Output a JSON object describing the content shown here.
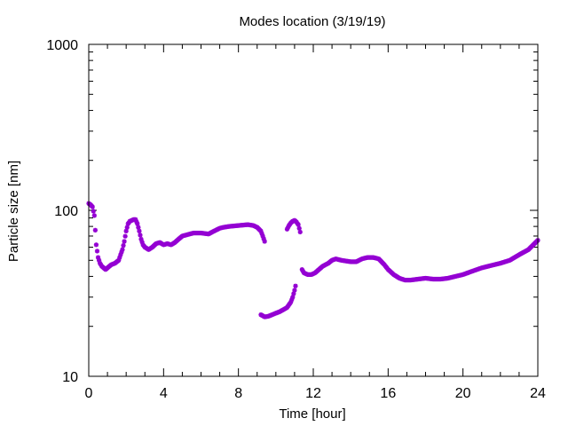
{
  "chart_data": {
    "type": "scatter",
    "title": "Modes location (3/19/19)",
    "xlabel": "Time [hour]",
    "ylabel": "Particle size [nm]",
    "xlim": [
      0,
      24
    ],
    "ylim": [
      10,
      1000
    ],
    "yscale": "log",
    "grid": false,
    "legend": "none",
    "x_ticks": [
      0,
      4,
      8,
      12,
      16,
      20,
      24
    ],
    "x_tick_labels": [
      "0",
      "4",
      "8",
      "12",
      "16",
      "20",
      "24"
    ],
    "y_ticks": [
      10,
      100,
      1000
    ],
    "y_tick_labels": [
      "10",
      "100",
      "1000"
    ],
    "marker_color": "#9400d3",
    "series": [
      {
        "name": "",
        "anchors": [
          [
            0.0,
            110
          ],
          [
            0.1,
            108
          ],
          [
            0.2,
            105
          ],
          [
            0.3,
            93
          ],
          [
            0.4,
            62
          ],
          [
            0.5,
            52
          ],
          [
            0.6,
            48
          ],
          [
            0.7,
            46
          ],
          [
            0.8,
            45
          ],
          [
            0.9,
            44
          ],
          [
            1.0,
            45
          ],
          [
            1.2,
            47
          ],
          [
            1.4,
            48
          ],
          [
            1.6,
            50
          ],
          [
            1.7,
            54
          ],
          [
            1.8,
            58
          ],
          [
            1.9,
            65
          ],
          [
            2.0,
            75
          ],
          [
            2.1,
            83
          ],
          [
            2.2,
            86
          ],
          [
            2.4,
            88
          ],
          [
            2.5,
            88
          ],
          [
            2.6,
            83
          ],
          [
            2.7,
            75
          ],
          [
            2.8,
            67
          ],
          [
            2.9,
            62
          ],
          [
            3.0,
            60
          ],
          [
            3.2,
            58
          ],
          [
            3.4,
            60
          ],
          [
            3.6,
            63
          ],
          [
            3.8,
            64
          ],
          [
            4.0,
            62
          ],
          [
            4.2,
            63
          ],
          [
            4.4,
            62
          ],
          [
            4.6,
            64
          ],
          [
            4.8,
            67
          ],
          [
            5.0,
            70
          ],
          [
            5.2,
            71
          ],
          [
            5.4,
            72
          ],
          [
            5.6,
            73
          ],
          [
            6.0,
            73
          ],
          [
            6.4,
            72
          ],
          [
            6.6,
            74
          ],
          [
            6.8,
            76
          ],
          [
            7.0,
            78
          ],
          [
            7.2,
            79
          ],
          [
            7.5,
            80
          ],
          [
            8.0,
            81
          ],
          [
            8.5,
            82
          ],
          [
            8.8,
            81
          ],
          [
            9.0,
            79
          ],
          [
            9.2,
            75
          ],
          [
            9.3,
            70
          ],
          [
            9.4,
            65
          ]
        ]
      },
      {
        "name": "",
        "anchors": [
          [
            9.2,
            23.5
          ],
          [
            9.4,
            22.8
          ],
          [
            9.6,
            23.0
          ],
          [
            9.8,
            23.5
          ],
          [
            10.0,
            24.0
          ],
          [
            10.2,
            24.5
          ],
          [
            10.4,
            25.2
          ],
          [
            10.6,
            26.0
          ],
          [
            10.8,
            28.0
          ],
          [
            10.9,
            30.0
          ],
          [
            11.0,
            33.0
          ],
          [
            11.05,
            35.0
          ]
        ]
      },
      {
        "name": "",
        "anchors": [
          [
            10.6,
            77
          ],
          [
            10.7,
            81
          ],
          [
            10.8,
            84
          ],
          [
            10.9,
            86
          ],
          [
            11.0,
            87
          ],
          [
            11.1,
            85
          ],
          [
            11.2,
            82
          ],
          [
            11.3,
            74
          ]
        ]
      },
      {
        "name": "",
        "anchors": [
          [
            11.4,
            44
          ],
          [
            11.5,
            42
          ],
          [
            11.7,
            41
          ],
          [
            11.9,
            41
          ],
          [
            12.1,
            42
          ],
          [
            12.3,
            44
          ],
          [
            12.5,
            46
          ],
          [
            12.8,
            48
          ],
          [
            13.0,
            50
          ],
          [
            13.2,
            51
          ],
          [
            13.5,
            50
          ],
          [
            14.0,
            49
          ],
          [
            14.3,
            49
          ],
          [
            14.6,
            51
          ],
          [
            14.9,
            52
          ],
          [
            15.2,
            52
          ],
          [
            15.5,
            51
          ],
          [
            15.8,
            47
          ],
          [
            16.0,
            44
          ],
          [
            16.3,
            41
          ],
          [
            16.6,
            39
          ],
          [
            16.9,
            38
          ],
          [
            17.2,
            38
          ],
          [
            17.6,
            38.5
          ],
          [
            18.0,
            39
          ],
          [
            18.4,
            38.5
          ],
          [
            18.8,
            38.5
          ],
          [
            19.2,
            39
          ],
          [
            19.6,
            40
          ],
          [
            20.0,
            41
          ],
          [
            20.5,
            43
          ],
          [
            21.0,
            45
          ],
          [
            21.5,
            46.5
          ],
          [
            22.0,
            48
          ],
          [
            22.5,
            50
          ],
          [
            23.0,
            54
          ],
          [
            23.5,
            58
          ],
          [
            24.0,
            66
          ]
        ]
      }
    ]
  }
}
